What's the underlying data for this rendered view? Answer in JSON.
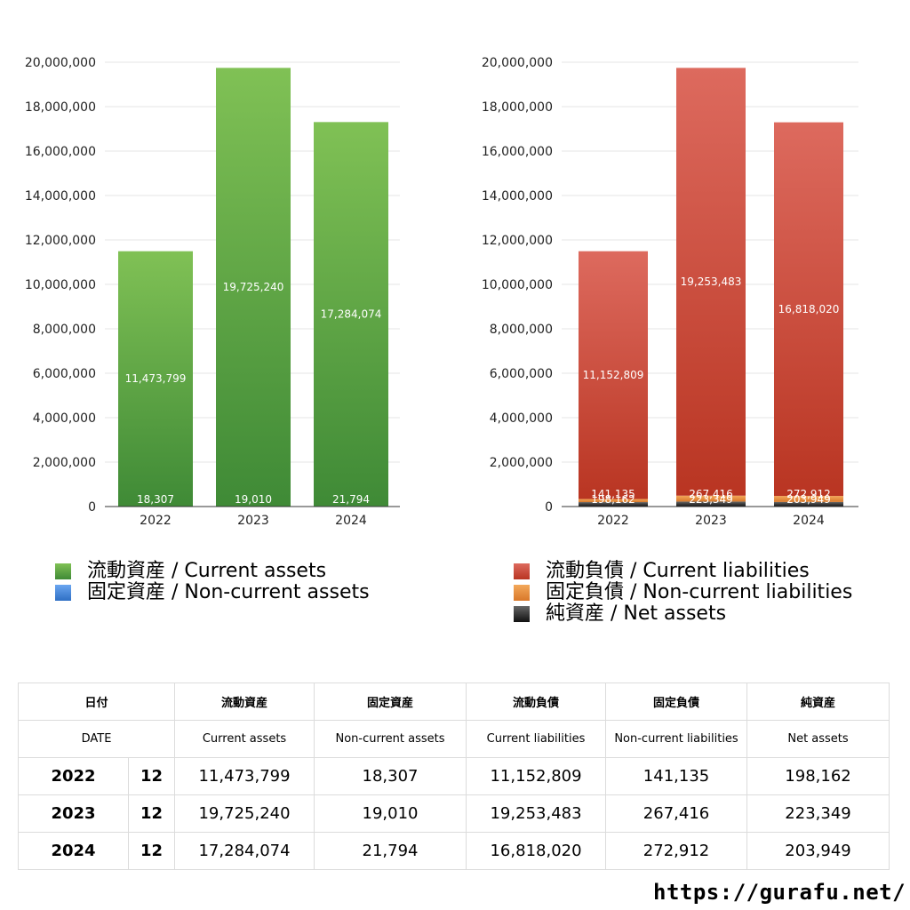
{
  "chart_data": [
    {
      "type": "bar",
      "stacked": true,
      "categories": [
        "2022",
        "2023",
        "2024"
      ],
      "ylim": [
        0,
        20000000
      ],
      "yticks": [
        0,
        2000000,
        4000000,
        6000000,
        8000000,
        10000000,
        12000000,
        14000000,
        16000000,
        18000000,
        20000000
      ],
      "ytick_labels": [
        "0",
        "2,000,000",
        "4,000,000",
        "6,000,000",
        "8,000,000",
        "10,000,000",
        "12,000,000",
        "14,000,000",
        "16,000,000",
        "18,000,000",
        "20,000,000"
      ],
      "grid": true,
      "series": [
        {
          "name": "固定資産 / Non-current assets",
          "values": [
            18307,
            19010,
            21794
          ],
          "labels": [
            "18,307",
            "19,010",
            "21,794"
          ],
          "color": "#4a87d8",
          "gradient": [
            "#6aa5f0",
            "#2f6fc4"
          ]
        },
        {
          "name": "流動資産 / Current assets",
          "values": [
            11473799,
            19725240,
            17284074
          ],
          "labels": [
            "11,473,799",
            "19,725,240",
            "17,284,074"
          ],
          "color": "#5fa845",
          "gradient": [
            "#80c155",
            "#3f8a36"
          ]
        }
      ]
    },
    {
      "type": "bar",
      "stacked": true,
      "categories": [
        "2022",
        "2023",
        "2024"
      ],
      "ylim": [
        0,
        20000000
      ],
      "yticks": [
        0,
        2000000,
        4000000,
        6000000,
        8000000,
        10000000,
        12000000,
        14000000,
        16000000,
        18000000,
        20000000
      ],
      "ytick_labels": [
        "0",
        "2,000,000",
        "4,000,000",
        "6,000,000",
        "8,000,000",
        "10,000,000",
        "12,000,000",
        "14,000,000",
        "16,000,000",
        "18,000,000",
        "20,000,000"
      ],
      "grid": true,
      "series": [
        {
          "name": "純資産 / Net assets",
          "values": [
            198162,
            223349,
            203949
          ],
          "labels": [
            "198,162",
            "223,349",
            "203,949"
          ],
          "color": "#333333",
          "gradient": [
            "#666666",
            "#111111"
          ]
        },
        {
          "name": "固定負債 / Non-current liabilities",
          "values": [
            141135,
            267416,
            272912
          ],
          "labels": [
            "141,135",
            "267,416",
            "272,912"
          ],
          "color": "#e8913a",
          "gradient": [
            "#f3a85a",
            "#d9782a"
          ]
        },
        {
          "name": "流動負債 / Current liabilities",
          "values": [
            11152809,
            19253483,
            16818020
          ],
          "labels": [
            "11,152,809",
            "19,253,483",
            "16,818,020"
          ],
          "color": "#d0493a",
          "gradient": [
            "#dd6a5e",
            "#b93522"
          ]
        }
      ]
    }
  ],
  "legends": [
    {
      "items": [
        {
          "label": "流動資産 / Current assets",
          "color": "#5fa845",
          "gradient": [
            "#80c155",
            "#3f8a36"
          ]
        },
        {
          "label": "固定資産 / Non-current assets",
          "color": "#4a87d8",
          "gradient": [
            "#6aa5f0",
            "#2f6fc4"
          ]
        }
      ]
    },
    {
      "items": [
        {
          "label": "流動負債 / Current liabilities",
          "color": "#d0493a",
          "gradient": [
            "#dd6a5e",
            "#b93522"
          ]
        },
        {
          "label": "固定負債 / Non-current liabilities",
          "color": "#e8913a",
          "gradient": [
            "#f3a85a",
            "#d9782a"
          ]
        },
        {
          "label": "純資産 / Net assets",
          "color": "#333333",
          "gradient": [
            "#666666",
            "#111111"
          ]
        }
      ]
    }
  ],
  "table": {
    "header_ja": [
      "日付",
      "流動資産",
      "固定資産",
      "流動負債",
      "固定負債",
      "純資産"
    ],
    "header_en": [
      "DATE",
      "Current assets",
      "Non-current assets",
      "Current liabilities",
      "Non-current liabilities",
      "Net assets"
    ],
    "rows": [
      {
        "year": "2022",
        "month": "12",
        "values": [
          "11,473,799",
          "18,307",
          "11,152,809",
          "141,135",
          "198,162"
        ]
      },
      {
        "year": "2023",
        "month": "12",
        "values": [
          "19,725,240",
          "19,010",
          "19,253,483",
          "267,416",
          "223,349"
        ]
      },
      {
        "year": "2024",
        "month": "12",
        "values": [
          "17,284,074",
          "21,794",
          "16,818,020",
          "272,912",
          "203,949"
        ]
      }
    ]
  },
  "footer": {
    "url": "https://gurafu.net/"
  }
}
